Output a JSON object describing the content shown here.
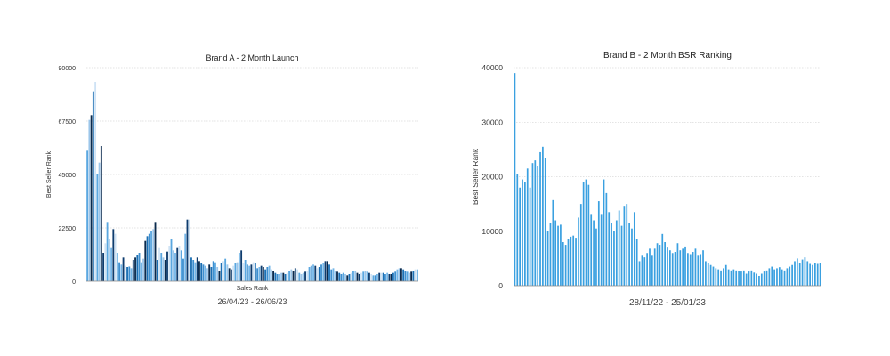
{
  "chart_data": [
    {
      "type": "bar",
      "title": "Brand A - 2 Month Launch",
      "ylabel": "Best Seller Rank",
      "xlabel": "Sales Rank",
      "date_range": "26/04/23 - 26/06/23",
      "ylim": [
        0,
        90000
      ],
      "yticks": [
        "0",
        "22500",
        "45000",
        "67500",
        "90000"
      ],
      "grid": true,
      "colors": [
        "#5aa7e0",
        "#1b6fb3",
        "#0e3c6e",
        "#9cc6ea",
        "#3d8fd0",
        "#cfe3f5",
        "#0a2a4d",
        "#74b6e8"
      ],
      "values": [
        55000,
        68000,
        70000,
        80000,
        84000,
        45000,
        50000,
        57000,
        12000,
        16000,
        25000,
        18000,
        14000,
        22000,
        20000,
        12000,
        8000,
        7000,
        10000,
        6500,
        6000,
        6200,
        5500,
        9000,
        10000,
        11000,
        12000,
        8000,
        9500,
        17000,
        19000,
        20000,
        21000,
        22000,
        25000,
        9000,
        14000,
        12000,
        10000,
        9000,
        12500,
        15000,
        18000,
        13000,
        12000,
        14000,
        15000,
        13000,
        9500,
        20000,
        26000,
        26000,
        10000,
        9000,
        8000,
        10000,
        8500,
        7500,
        7000,
        6500,
        5500,
        7000,
        6000,
        8500,
        8000,
        6000,
        4500,
        7500,
        8500,
        9500,
        7000,
        5500,
        5000,
        6500,
        7500,
        8000,
        12000,
        13000,
        7500,
        9000,
        7000,
        6500,
        7000,
        8000,
        7500,
        5500,
        6000,
        6500,
        6000,
        5000,
        6000,
        6500,
        5000,
        4500,
        3500,
        3000,
        3000,
        3500,
        3500,
        3000,
        3500,
        4500,
        5000,
        4500,
        5500,
        5000,
        3500,
        3000,
        3500,
        4000,
        4500,
        6000,
        6500,
        7000,
        6500,
        5500,
        6000,
        7000,
        7500,
        8500,
        8500,
        7000,
        5000,
        5500,
        4500,
        4000,
        3500,
        3000,
        3500,
        3000,
        2500,
        3000,
        3500,
        4500,
        4500,
        3500,
        3000,
        3500,
        4000,
        4500,
        4000,
        3500,
        3000,
        2500,
        2500,
        3000,
        3500,
        3500,
        3500,
        3000,
        3500,
        3000,
        3000,
        3500,
        4000,
        5000,
        5500,
        5500,
        5000,
        4500,
        4000,
        3500,
        4000,
        4500,
        5000,
        5000
      ]
    },
    {
      "type": "bar",
      "title": "Brand B - 2 Month BSR Ranking",
      "ylabel": "Best Seller Rank",
      "date_range": "28/11/22 - 25/01/23",
      "ylim": [
        0,
        40000
      ],
      "yticks": [
        "0",
        "10000",
        "20000",
        "30000",
        "40000"
      ],
      "grid": true,
      "color": "#3aa0e0",
      "values": [
        39000,
        20500,
        18000,
        19500,
        19000,
        21500,
        18000,
        22500,
        23000,
        22000,
        24500,
        25500,
        23500,
        10000,
        11500,
        15700,
        12000,
        11000,
        11200,
        8000,
        7500,
        8500,
        9000,
        9200,
        8800,
        12500,
        15000,
        19000,
        19500,
        18500,
        13000,
        12000,
        10500,
        15500,
        13000,
        19500,
        17000,
        13500,
        11500,
        10000,
        12000,
        13800,
        11000,
        14500,
        15000,
        11500,
        10500,
        13500,
        8500,
        4500,
        5500,
        5200,
        6000,
        6800,
        5500,
        6800,
        7800,
        7500,
        9500,
        8000,
        7000,
        6500,
        6000,
        6200,
        7800,
        6500,
        6800,
        7200,
        6000,
        5800,
        6200,
        6800,
        5500,
        5800,
        6500,
        4500,
        4200,
        3800,
        3500,
        3200,
        3000,
        2800,
        3200,
        3800,
        3000,
        2800,
        3000,
        2800,
        2700,
        2600,
        2800,
        2200,
        2600,
        2800,
        2400,
        2200,
        1800,
        2200,
        2600,
        2800,
        3200,
        3500,
        3000,
        3200,
        3400,
        3000,
        2800,
        3200,
        3500,
        3800,
        4500,
        5000,
        4200,
        4800,
        5200,
        4500,
        4000,
        3800,
        4200,
        4000,
        4100
      ]
    }
  ]
}
